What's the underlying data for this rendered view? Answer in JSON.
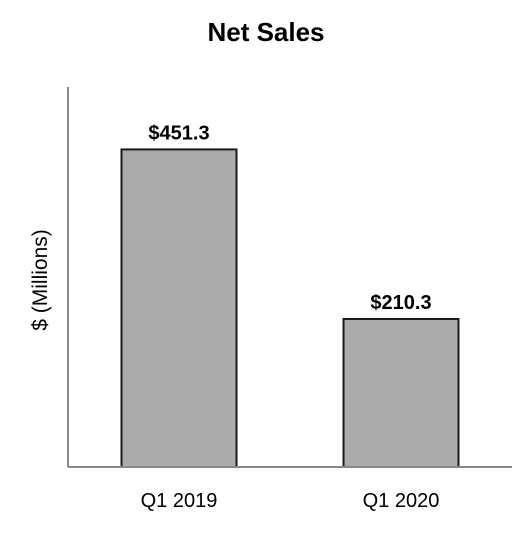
{
  "chart_data": {
    "type": "bar",
    "title": "Net Sales",
    "xlabel": "",
    "ylabel": "$ (Millions)",
    "categories": [
      "Q1 2019",
      "Q1 2020"
    ],
    "values": [
      451.3,
      210.3
    ],
    "data_labels": [
      "$451.3",
      "$210.3"
    ],
    "ylim": [
      0,
      540
    ],
    "grid": false,
    "legend": "none",
    "colors": {
      "bar_fill": "#ababab",
      "bar_stroke": "#1a1a1a",
      "axis": "#888888"
    }
  }
}
